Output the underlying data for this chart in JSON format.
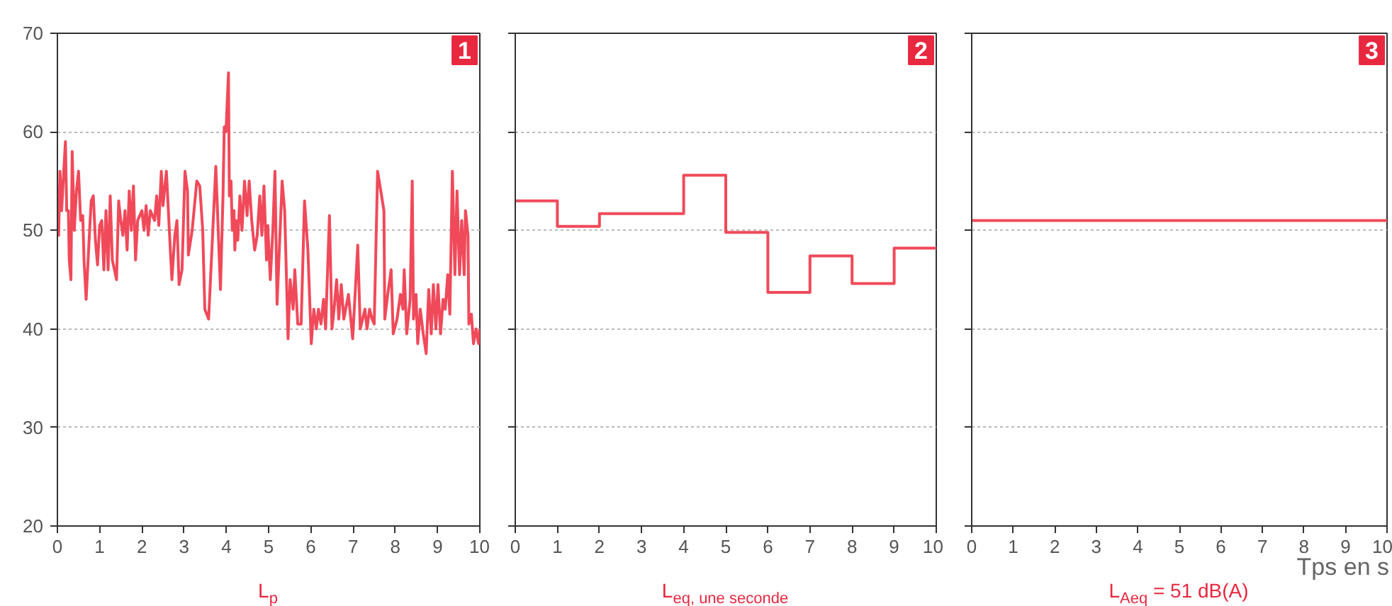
{
  "chart_data": [
    {
      "type": "line",
      "title": "1",
      "xlabel": "L$_{p}$",
      "xlim": [
        0,
        10
      ],
      "ylim": [
        20,
        70
      ],
      "xticks": [
        0,
        1,
        2,
        3,
        4,
        5,
        6,
        7,
        8,
        9,
        10
      ],
      "yticks": [
        20,
        30,
        40,
        50,
        60,
        70
      ],
      "grid": "y",
      "series": [
        {
          "color": "#f04a5a",
          "x": [
            0,
            0.03,
            0.06,
            0.1,
            0.15,
            0.19,
            0.22,
            0.26,
            0.28,
            0.32,
            0.35,
            0.4,
            0.45,
            0.5,
            0.55,
            0.6,
            0.63,
            0.68,
            0.75,
            0.8,
            0.85,
            0.9,
            0.95,
            1.0,
            1.05,
            1.1,
            1.15,
            1.2,
            1.25,
            1.3,
            1.4,
            1.45,
            1.5,
            1.55,
            1.6,
            1.65,
            1.7,
            1.75,
            1.8,
            1.85,
            1.9,
            2.0,
            2.05,
            2.1,
            2.15,
            2.2,
            2.3,
            2.35,
            2.4,
            2.46,
            2.5,
            2.58,
            2.65,
            2.71,
            2.78,
            2.83,
            2.88,
            2.95,
            3.02,
            3.08,
            3.1,
            3.19,
            3.3,
            3.37,
            3.44,
            3.49,
            3.58,
            3.75,
            3.86,
            3.92,
            3.95,
            3.99,
            4.05,
            4.07,
            4.11,
            4.14,
            4.18,
            4.2,
            4.23,
            4.27,
            4.32,
            4.37,
            4.43,
            4.49,
            4.54,
            4.6,
            4.67,
            4.73,
            4.79,
            4.84,
            4.89,
            4.95,
            4.98,
            5.04,
            5.1,
            5.15,
            5.2,
            5.32,
            5.38,
            5.43,
            5.46,
            5.51,
            5.58,
            5.62,
            5.69,
            5.77,
            5.85,
            5.93,
            6.01,
            6.07,
            6.13,
            6.18,
            6.24,
            6.3,
            6.35,
            6.38,
            6.44,
            6.5,
            6.55,
            6.61,
            6.66,
            6.72,
            6.78,
            6.89,
            6.99,
            7.11,
            7.17,
            7.28,
            7.33,
            7.39,
            7.45,
            7.5,
            7.58,
            7.73,
            7.75,
            7.82,
            7.9,
            7.95,
            8.04,
            8.12,
            8.18,
            8.21,
            8.27,
            8.35,
            8.4,
            8.43,
            8.49,
            8.53,
            8.59,
            8.66,
            8.73,
            8.79,
            8.85,
            8.9,
            8.96,
            9.01,
            9.07,
            9.13,
            9.18,
            9.24,
            9.29,
            9.35,
            9.41,
            9.46,
            9.52,
            9.57,
            9.63,
            9.66,
            9.72,
            9.74,
            9.8,
            9.85,
            9.91,
            9.97,
            10
          ],
          "values": [
            53,
            49.5,
            56,
            52,
            56,
            59,
            52,
            52,
            47,
            45,
            58,
            50,
            54,
            56,
            51,
            51.5,
            47,
            43,
            49,
            53,
            53.5,
            49,
            46.5,
            50.5,
            51,
            46,
            52,
            46,
            53.5,
            47,
            45,
            53,
            51,
            49.5,
            52,
            48,
            54,
            50,
            54.5,
            47,
            51,
            52,
            50,
            52.5,
            49.5,
            52,
            51,
            53.5,
            50.5,
            56,
            52.5,
            56,
            50,
            45,
            49.5,
            51,
            44.5,
            46,
            56,
            54,
            47.5,
            50,
            55,
            54.5,
            50,
            42,
            41,
            56.5,
            44,
            53.5,
            60.5,
            60,
            66,
            53.5,
            55,
            50,
            52,
            48,
            51,
            49,
            53.5,
            50,
            55,
            51.5,
            55,
            51,
            48,
            49.5,
            53.5,
            49.5,
            54.5,
            47,
            50.5,
            45,
            50,
            56,
            42.5,
            55,
            52,
            44,
            39,
            45,
            42,
            46,
            40.5,
            40.5,
            53,
            48,
            38.5,
            42,
            40,
            42,
            40.5,
            43,
            40,
            44,
            51.5,
            40,
            42,
            45,
            41,
            44.5,
            41,
            43.5,
            39,
            48.5,
            40,
            42,
            40,
            42,
            41,
            40.5,
            56,
            52,
            41,
            43.5,
            46,
            39.5,
            41,
            43.5,
            42,
            46,
            39.5,
            43,
            55,
            41,
            43.5,
            38.5,
            42,
            39.5,
            37.5,
            44,
            39.5,
            44.5,
            40,
            44.5,
            39.5,
            43,
            42,
            45.5,
            41.5,
            56,
            45.5,
            54,
            45.5,
            51,
            45.5,
            52,
            49.5,
            40.5,
            41.5,
            38.5,
            40,
            38.5,
            40
          ]
        }
      ]
    },
    {
      "type": "step",
      "title": "2",
      "xlabel": "L$_{eq, une seconde}$",
      "xlim": [
        0,
        10
      ],
      "ylim": [
        20,
        70
      ],
      "xticks": [
        0,
        1,
        2,
        3,
        4,
        5,
        6,
        7,
        8,
        9,
        10
      ],
      "yticks": [
        20,
        30,
        40,
        50,
        60,
        70
      ],
      "grid": "y",
      "tick_labels": "x",
      "series": [
        {
          "color": "#f04a5a",
          "x": [
            0,
            1,
            2,
            3,
            4,
            5,
            6,
            7,
            8,
            9,
            10
          ],
          "values": [
            53,
            50.4,
            51.7,
            51.7,
            55.6,
            49.8,
            43.7,
            47.4,
            44.6,
            48.2,
            48.2
          ]
        }
      ]
    },
    {
      "type": "line",
      "title": "3",
      "xlabel": "L$_{Aeq}$ = 51 dB(A)",
      "annotations": [
        "Tps en s"
      ],
      "xlim": [
        0,
        10
      ],
      "ylim": [
        20,
        70
      ],
      "xticks": [
        0,
        1,
        2,
        3,
        4,
        5,
        6,
        7,
        8,
        9,
        10
      ],
      "yticks": [
        20,
        30,
        40,
        50,
        60,
        70
      ],
      "grid": "y",
      "tick_labels": "x",
      "series": [
        {
          "color": "#f04a5a",
          "x": [
            0,
            10
          ],
          "values": [
            51,
            51
          ]
        }
      ]
    }
  ]
}
